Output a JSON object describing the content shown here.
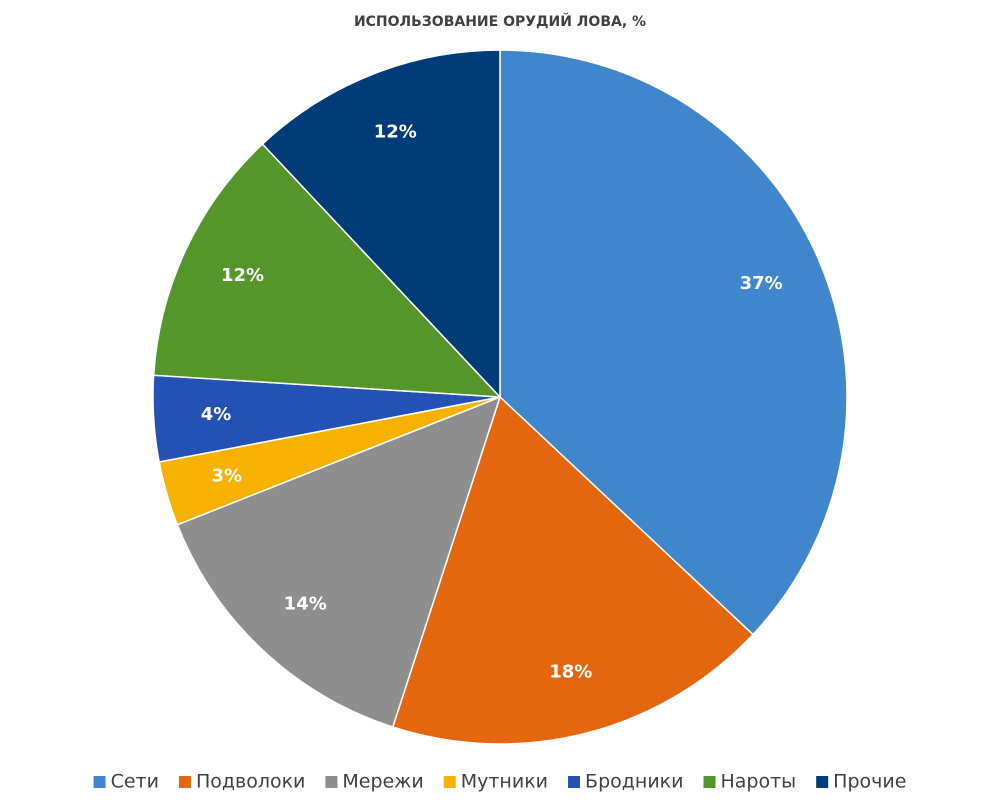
{
  "chart_data": {
    "type": "pie",
    "title": "ИСПОЛЬЗОВАНИЕ ОРУДИЙ ЛОВА, %",
    "categories": [
      "Сети",
      "Подволоки",
      "Мережи",
      "Мутники",
      "Бродники",
      "Нароты",
      "Прочие"
    ],
    "values": [
      37,
      18,
      14,
      3,
      4,
      12,
      12
    ],
    "value_labels": [
      "37%",
      "18%",
      "14%",
      "3%",
      "4%",
      "12%",
      "12%"
    ],
    "colors": [
      "#3f86cc",
      "#e4660e",
      "#8e8e8e",
      "#f7b100",
      "#2452b4",
      "#55962b",
      "#003d78"
    ]
  }
}
